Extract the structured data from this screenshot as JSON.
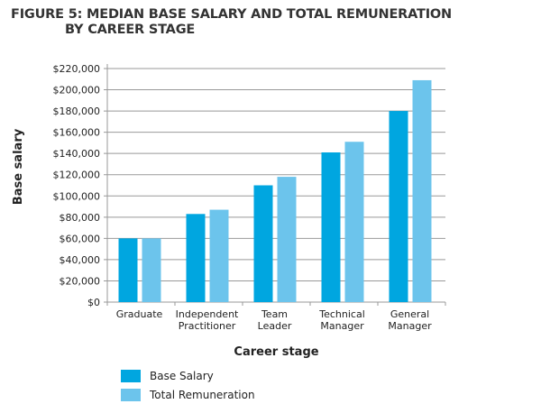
{
  "chart_data": {
    "type": "bar",
    "title": "FIGURE 5: MEDIAN BASE SALARY AND TOTAL REMUNERATION",
    "title_line2": "BY CAREER STAGE",
    "xlabel": "Career stage",
    "ylabel": "Base salary",
    "ylim": [
      0,
      220000
    ],
    "yticks": [
      0,
      20000,
      40000,
      60000,
      80000,
      100000,
      120000,
      140000,
      160000,
      180000,
      200000,
      220000
    ],
    "ytick_labels": [
      "$0",
      "$20,000",
      "$40,000",
      "$60,000",
      "$80,000",
      "$100,000",
      "$120,000",
      "$140,000",
      "$160,000",
      "$180,000",
      "$200,000",
      "$220,000"
    ],
    "categories": [
      [
        "Graduate"
      ],
      [
        "Independent",
        "Practitioner"
      ],
      [
        "Team",
        "Leader"
      ],
      [
        "Technical",
        "Manager"
      ],
      [
        "General",
        "Manager"
      ]
    ],
    "series": [
      {
        "name": "Base Salary",
        "color": "#00a6e0",
        "values": [
          60000,
          83000,
          110000,
          141000,
          180000
        ]
      },
      {
        "name": "Total Remuneration",
        "color": "#6cc4ec",
        "values": [
          60000,
          87000,
          118000,
          151000,
          209000
        ]
      }
    ],
    "grid": true,
    "legend": "bottom-left"
  }
}
